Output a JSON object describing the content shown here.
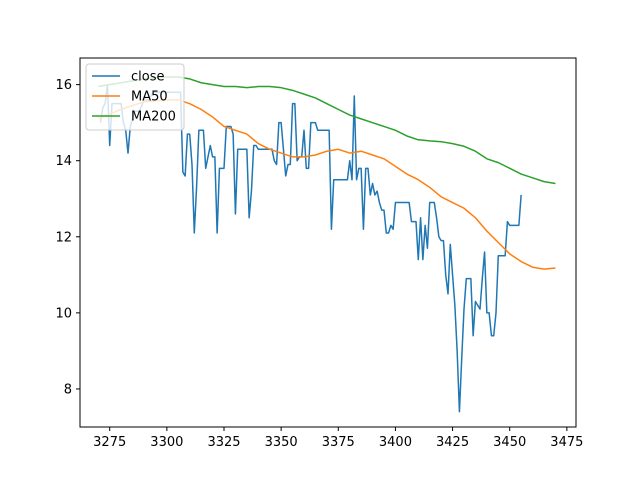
{
  "chart_data": {
    "type": "line",
    "title": "",
    "xlabel": "",
    "ylabel": "",
    "xlim": [
      3262,
      3479
    ],
    "ylim": [
      7.0,
      16.7
    ],
    "x_ticks": [
      3275,
      3300,
      3325,
      3350,
      3375,
      3400,
      3425,
      3450,
      3475
    ],
    "y_ticks": [
      8,
      10,
      12,
      14,
      16
    ],
    "x_tick_labels": [
      "3275",
      "3300",
      "3325",
      "3350",
      "3375",
      "3400",
      "3425",
      "3450",
      "3475"
    ],
    "y_tick_labels": [
      "8",
      "10",
      "12",
      "14",
      "16"
    ],
    "grid": false,
    "legend_position": "top-left",
    "series": [
      {
        "name": "close",
        "color": "#1f77b4",
        "points": [
          [
            3271,
            15.0
          ],
          [
            3272,
            15.4
          ],
          [
            3273,
            15.5
          ],
          [
            3274,
            16.0
          ],
          [
            3275,
            14.4
          ],
          [
            3276,
            15.5
          ],
          [
            3278,
            15.5
          ],
          [
            3280,
            15.5
          ],
          [
            3281,
            15.0
          ],
          [
            3282,
            14.8
          ],
          [
            3283,
            14.2
          ],
          [
            3284,
            14.9
          ],
          [
            3286,
            15.3
          ],
          [
            3288,
            15.3
          ],
          [
            3290,
            15.6
          ],
          [
            3292,
            15.6
          ],
          [
            3294,
            15.8
          ],
          [
            3296,
            15.8
          ],
          [
            3298,
            15.8
          ],
          [
            3300,
            15.8
          ],
          [
            3302,
            15.8
          ],
          [
            3304,
            15.8
          ],
          [
            3306,
            15.8
          ],
          [
            3307,
            13.7
          ],
          [
            3308,
            13.6
          ],
          [
            3309,
            14.7
          ],
          [
            3310,
            14.7
          ],
          [
            3311,
            13.9
          ],
          [
            3312,
            12.1
          ],
          [
            3313,
            13.3
          ],
          [
            3314,
            14.8
          ],
          [
            3315,
            14.8
          ],
          [
            3316,
            14.8
          ],
          [
            3317,
            13.8
          ],
          [
            3318,
            14.1
          ],
          [
            3319,
            14.4
          ],
          [
            3320,
            14.1
          ],
          [
            3321,
            14.1
          ],
          [
            3322,
            12.1
          ],
          [
            3323,
            13.8
          ],
          [
            3324,
            13.8
          ],
          [
            3325,
            13.8
          ],
          [
            3326,
            14.9
          ],
          [
            3327,
            14.9
          ],
          [
            3328,
            14.9
          ],
          [
            3329,
            14.7
          ],
          [
            3330,
            12.6
          ],
          [
            3331,
            14.3
          ],
          [
            3332,
            14.3
          ],
          [
            3333,
            14.3
          ],
          [
            3334,
            14.3
          ],
          [
            3335,
            14.3
          ],
          [
            3336,
            12.5
          ],
          [
            3337,
            13.2
          ],
          [
            3338,
            14.4
          ],
          [
            3339,
            14.4
          ],
          [
            3340,
            14.3
          ],
          [
            3342,
            14.3
          ],
          [
            3344,
            14.3
          ],
          [
            3346,
            14.3
          ],
          [
            3347,
            14.0
          ],
          [
            3348,
            13.9
          ],
          [
            3349,
            15.0
          ],
          [
            3350,
            15.0
          ],
          [
            3351,
            14.3
          ],
          [
            3352,
            13.6
          ],
          [
            3353,
            13.9
          ],
          [
            3354,
            13.9
          ],
          [
            3355,
            15.5
          ],
          [
            3356,
            15.5
          ],
          [
            3357,
            14.0
          ],
          [
            3358,
            14.1
          ],
          [
            3359,
            14.1
          ],
          [
            3360,
            14.8
          ],
          [
            3361,
            13.8
          ],
          [
            3362,
            13.8
          ],
          [
            3363,
            15.0
          ],
          [
            3364,
            15.0
          ],
          [
            3365,
            15.0
          ],
          [
            3366,
            14.8
          ],
          [
            3368,
            14.8
          ],
          [
            3370,
            14.8
          ],
          [
            3371,
            14.8
          ],
          [
            3372,
            12.2
          ],
          [
            3373,
            13.5
          ],
          [
            3374,
            13.5
          ],
          [
            3375,
            13.5
          ],
          [
            3376,
            13.5
          ],
          [
            3377,
            13.5
          ],
          [
            3378,
            13.5
          ],
          [
            3379,
            13.5
          ],
          [
            3380,
            14.0
          ],
          [
            3381,
            13.5
          ],
          [
            3382,
            15.7
          ],
          [
            3383,
            13.5
          ],
          [
            3384,
            13.8
          ],
          [
            3385,
            13.8
          ],
          [
            3386,
            12.2
          ],
          [
            3387,
            13.8
          ],
          [
            3388,
            13.8
          ],
          [
            3389,
            13.1
          ],
          [
            3390,
            13.4
          ],
          [
            3391,
            13.1
          ],
          [
            3392,
            13.2
          ],
          [
            3393,
            12.9
          ],
          [
            3394,
            12.7
          ],
          [
            3395,
            12.7
          ],
          [
            3396,
            12.1
          ],
          [
            3397,
            12.1
          ],
          [
            3398,
            12.3
          ],
          [
            3399,
            12.2
          ],
          [
            3400,
            12.9
          ],
          [
            3402,
            12.9
          ],
          [
            3404,
            12.9
          ],
          [
            3406,
            12.9
          ],
          [
            3407,
            12.4
          ],
          [
            3408,
            12.4
          ],
          [
            3409,
            12.4
          ],
          [
            3410,
            11.4
          ],
          [
            3411,
            12.5
          ],
          [
            3412,
            11.4
          ],
          [
            3413,
            12.3
          ],
          [
            3414,
            11.7
          ],
          [
            3415,
            12.9
          ],
          [
            3416,
            12.9
          ],
          [
            3417,
            12.9
          ],
          [
            3418,
            12.5
          ],
          [
            3419,
            12.0
          ],
          [
            3420,
            11.9
          ],
          [
            3421,
            11.9
          ],
          [
            3422,
            11.0
          ],
          [
            3423,
            10.5
          ],
          [
            3424,
            11.8
          ],
          [
            3425,
            11.0
          ],
          [
            3426,
            10.2
          ],
          [
            3427,
            9.0
          ],
          [
            3428,
            7.4
          ],
          [
            3429,
            8.8
          ],
          [
            3430,
            10.1
          ],
          [
            3431,
            10.9
          ],
          [
            3432,
            10.9
          ],
          [
            3433,
            10.9
          ],
          [
            3434,
            9.4
          ],
          [
            3435,
            10.3
          ],
          [
            3436,
            10.2
          ],
          [
            3437,
            10.1
          ],
          [
            3438,
            10.9
          ],
          [
            3439,
            11.6
          ],
          [
            3440,
            10.0
          ],
          [
            3441,
            10.0
          ],
          [
            3442,
            9.4
          ],
          [
            3443,
            9.4
          ],
          [
            3444,
            10.0
          ],
          [
            3445,
            11.5
          ],
          [
            3446,
            11.5
          ],
          [
            3447,
            11.5
          ],
          [
            3448,
            11.5
          ],
          [
            3449,
            12.4
          ],
          [
            3450,
            12.3
          ],
          [
            3451,
            12.3
          ],
          [
            3452,
            12.3
          ],
          [
            3453,
            12.3
          ],
          [
            3454,
            12.3
          ],
          [
            3455,
            13.1
          ]
        ]
      },
      {
        "name": "MA50",
        "color": "#ff7f0e",
        "points": [
          [
            3270,
            15.1
          ],
          [
            3280,
            15.35
          ],
          [
            3290,
            15.55
          ],
          [
            3300,
            15.6
          ],
          [
            3305,
            15.6
          ],
          [
            3310,
            15.5
          ],
          [
            3315,
            15.35
          ],
          [
            3320,
            15.15
          ],
          [
            3325,
            14.9
          ],
          [
            3330,
            14.8
          ],
          [
            3335,
            14.7
          ],
          [
            3340,
            14.45
          ],
          [
            3345,
            14.3
          ],
          [
            3350,
            14.2
          ],
          [
            3355,
            14.1
          ],
          [
            3360,
            14.1
          ],
          [
            3365,
            14.15
          ],
          [
            3370,
            14.25
          ],
          [
            3375,
            14.3
          ],
          [
            3380,
            14.2
          ],
          [
            3385,
            14.25
          ],
          [
            3390,
            14.15
          ],
          [
            3395,
            14.05
          ],
          [
            3400,
            13.85
          ],
          [
            3405,
            13.65
          ],
          [
            3410,
            13.5
          ],
          [
            3415,
            13.3
          ],
          [
            3420,
            13.05
          ],
          [
            3425,
            12.9
          ],
          [
            3430,
            12.75
          ],
          [
            3435,
            12.5
          ],
          [
            3440,
            12.15
          ],
          [
            3445,
            11.85
          ],
          [
            3450,
            11.55
          ],
          [
            3455,
            11.35
          ],
          [
            3460,
            11.2
          ],
          [
            3465,
            11.15
          ],
          [
            3470,
            11.18
          ]
        ]
      },
      {
        "name": "MA200",
        "color": "#2ca02c",
        "points": [
          [
            3270,
            15.95
          ],
          [
            3280,
            16.05
          ],
          [
            3290,
            16.15
          ],
          [
            3300,
            16.2
          ],
          [
            3305,
            16.2
          ],
          [
            3310,
            16.15
          ],
          [
            3315,
            16.05
          ],
          [
            3320,
            16.0
          ],
          [
            3325,
            15.95
          ],
          [
            3330,
            15.95
          ],
          [
            3335,
            15.92
          ],
          [
            3340,
            15.95
          ],
          [
            3345,
            15.95
          ],
          [
            3350,
            15.92
          ],
          [
            3355,
            15.85
          ],
          [
            3360,
            15.75
          ],
          [
            3365,
            15.65
          ],
          [
            3370,
            15.5
          ],
          [
            3375,
            15.35
          ],
          [
            3380,
            15.2
          ],
          [
            3385,
            15.1
          ],
          [
            3390,
            15.0
          ],
          [
            3395,
            14.9
          ],
          [
            3400,
            14.8
          ],
          [
            3405,
            14.65
          ],
          [
            3410,
            14.55
          ],
          [
            3415,
            14.52
          ],
          [
            3420,
            14.5
          ],
          [
            3425,
            14.45
          ],
          [
            3430,
            14.38
          ],
          [
            3435,
            14.25
          ],
          [
            3440,
            14.05
          ],
          [
            3445,
            13.95
          ],
          [
            3450,
            13.8
          ],
          [
            3455,
            13.65
          ],
          [
            3460,
            13.55
          ],
          [
            3465,
            13.45
          ],
          [
            3470,
            13.4
          ]
        ]
      }
    ]
  }
}
